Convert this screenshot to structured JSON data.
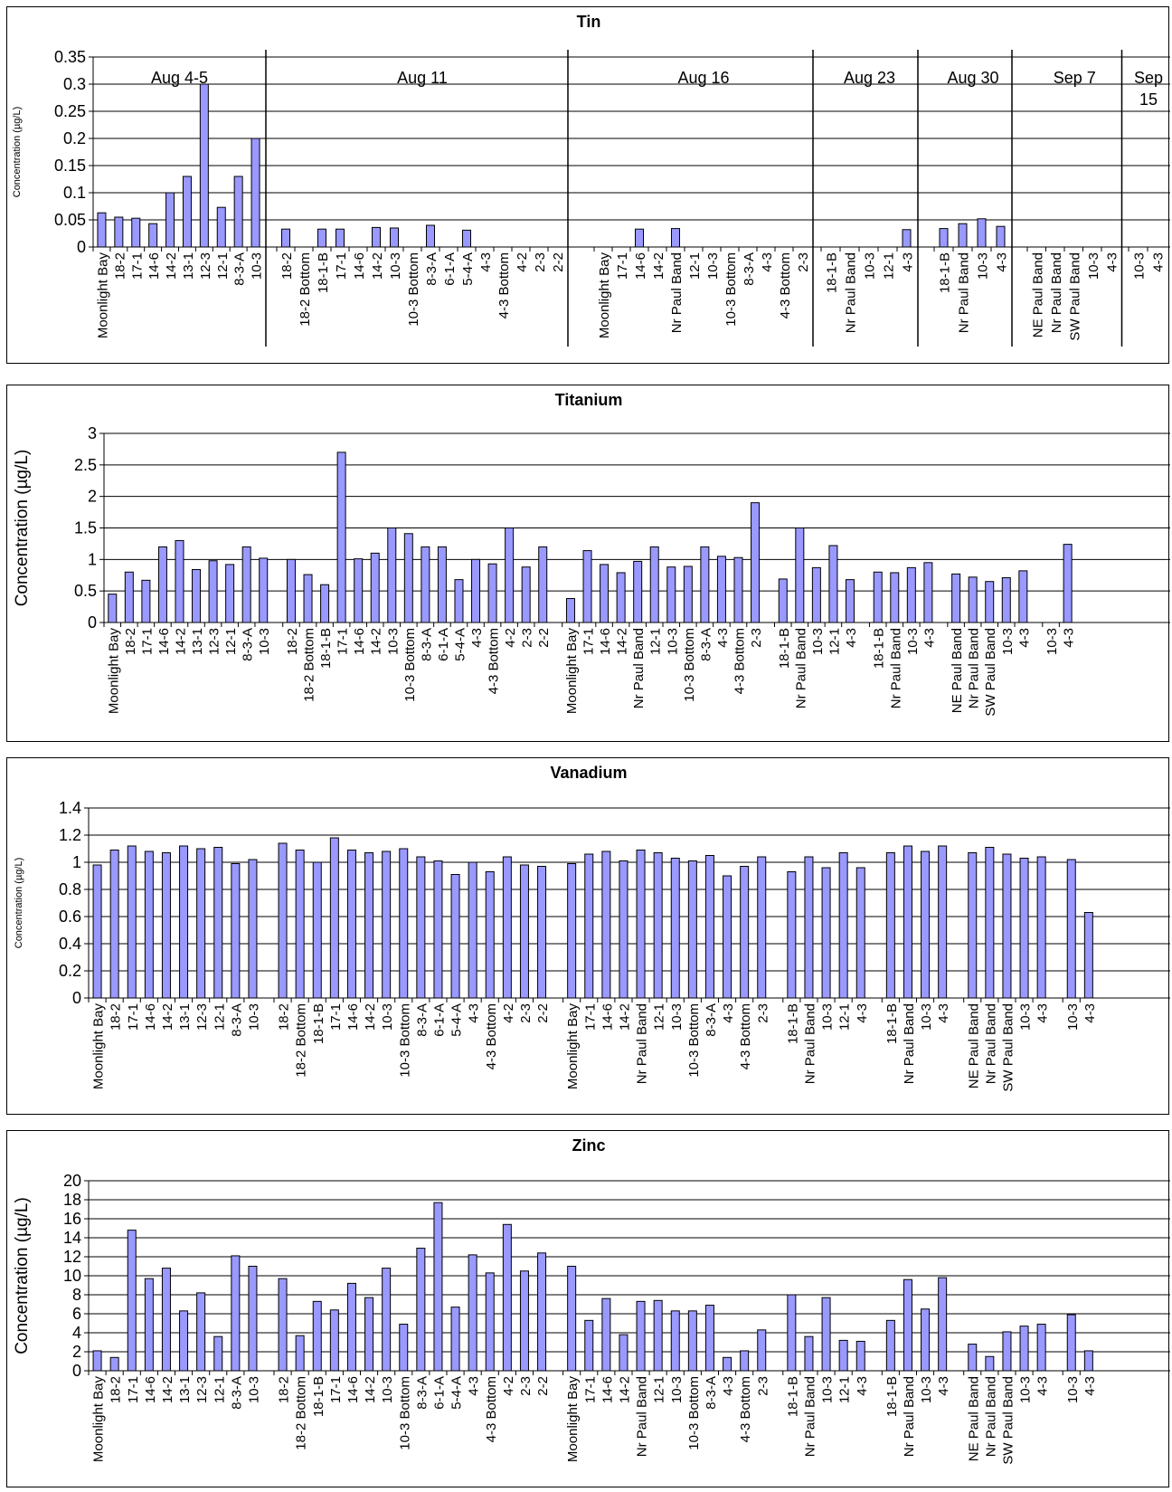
{
  "chart_data": [
    {
      "type": "bar",
      "title": "Tin",
      "ylabel": "Concentration (µg/L)",
      "ylim": [
        0,
        0.35
      ],
      "yticks": [
        "0",
        "0.05",
        "0.1",
        "0.15",
        "0.2",
        "0.25",
        "0.3",
        "0.35"
      ],
      "grid": true,
      "bar_color": "#9999ff",
      "groups": [
        {
          "label": "Aug 4-5",
          "categories": [
            "Moonlight Bay",
            "18-2",
            "17-1",
            "14-6",
            "14-2",
            "13-1",
            "12-3",
            "12-1",
            "8-3-A",
            "10-3"
          ],
          "values": [
            0.063,
            0.055,
            0.053,
            0.043,
            0.1,
            0.13,
            0.3,
            0.073,
            0.13,
            0.2
          ]
        },
        {
          "label": "Aug 11",
          "categories": [
            "18-2",
            "18-2 Bottom",
            "18-1-B",
            "17-1",
            "14-6",
            "14-2",
            "10-3",
            "10-3 Bottom",
            "8-3-A",
            "6-1-A",
            "5-4-A",
            "4-3",
            "4-3 Bottom",
            "4-2",
            "2-3",
            "2-2"
          ],
          "values": [
            0.033,
            null,
            0.033,
            0.033,
            null,
            0.036,
            0.035,
            null,
            0.04,
            null,
            0.031,
            null,
            null,
            null,
            null,
            null
          ]
        },
        {
          "label": "Aug 16",
          "categories": [
            "Moonlight Bay",
            "17-1",
            "14-6",
            "14-2",
            "Nr Paul Band",
            "12-1",
            "10-3",
            "10-3 Bottom",
            "8-3-A",
            "4-3",
            "4-3 Bottom",
            "2-3"
          ],
          "values": [
            null,
            null,
            0.033,
            null,
            0.034,
            null,
            null,
            null,
            null,
            null,
            null,
            null
          ]
        },
        {
          "label": "Aug 23",
          "categories": [
            "18-1-B",
            "Nr Paul Band",
            "10-3",
            "12-1",
            "4-3"
          ],
          "values": [
            null,
            null,
            null,
            null,
            0.032
          ]
        },
        {
          "label": "Aug 30",
          "categories": [
            "18-1-B",
            "Nr Paul Band",
            "10-3",
            "4-3"
          ],
          "values": [
            0.034,
            0.043,
            0.052,
            0.038
          ]
        },
        {
          "label": "Sep 7",
          "categories": [
            "NE Paul Band",
            "Nr Paul Band",
            "SW Paul Band",
            "10-3",
            "4-3"
          ],
          "values": [
            null,
            null,
            null,
            null,
            null
          ]
        },
        {
          "label": "Sep 15",
          "categories": [
            "10-3",
            "4-3"
          ],
          "values": [
            null,
            null
          ]
        }
      ]
    },
    {
      "type": "bar",
      "title": "Titanium",
      "ylabel": "Concentration (µg/L)",
      "ylim": [
        0,
        3
      ],
      "yticks": [
        "0",
        "0.5",
        "1",
        "1.5",
        "2",
        "2.5",
        "3"
      ],
      "grid": true,
      "bar_color": "#9999ff",
      "groups": [
        {
          "categories": [
            "Moonlight Bay",
            "18-2",
            "17-1",
            "14-6",
            "14-2",
            "13-1",
            "12-3",
            "12-1",
            "8-3-A",
            "10-3"
          ],
          "values": [
            0.45,
            0.8,
            0.67,
            1.2,
            1.3,
            0.84,
            0.98,
            0.92,
            1.2,
            1.02
          ]
        },
        {
          "categories": [
            "18-2",
            "18-2 Bottom",
            "18-1-B",
            "17-1",
            "14-6",
            "14-2",
            "10-3",
            "10-3 Bottom",
            "8-3-A",
            "6-1-A",
            "5-4-A",
            "4-3",
            "4-3 Bottom",
            "4-2",
            "2-3",
            "2-2"
          ],
          "values": [
            1.0,
            0.76,
            0.6,
            2.7,
            1.01,
            1.1,
            1.5,
            1.41,
            1.2,
            1.2,
            0.68,
            1.0,
            0.93,
            1.5,
            0.88,
            1.2
          ]
        },
        {
          "categories": [
            "Moonlight Bay",
            "17-1",
            "14-6",
            "14-2",
            "Nr Paul Band",
            "12-1",
            "10-3",
            "10-3 Bottom",
            "8-3-A",
            "4-3",
            "4-3 Bottom",
            "2-3"
          ],
          "values": [
            0.38,
            1.14,
            0.92,
            0.79,
            0.97,
            1.2,
            0.88,
            0.89,
            1.2,
            1.05,
            1.03,
            1.9
          ]
        },
        {
          "categories": [
            "18-1-B",
            "Nr Paul Band",
            "10-3",
            "12-1",
            "4-3"
          ],
          "values": [
            0.69,
            1.5,
            0.87,
            1.22,
            0.68
          ]
        },
        {
          "categories": [
            "18-1-B",
            "Nr Paul Band",
            "10-3",
            "4-3"
          ],
          "values": [
            0.8,
            0.79,
            0.87,
            0.95
          ]
        },
        {
          "categories": [
            "NE Paul Band",
            "Nr Paul Band",
            "SW Paul Band",
            "10-3",
            "4-3"
          ],
          "values": [
            0.77,
            0.72,
            0.65,
            0.71,
            0.82
          ]
        },
        {
          "categories": [
            "10-3",
            "4-3"
          ],
          "values": [
            null,
            1.24
          ]
        }
      ]
    },
    {
      "type": "bar",
      "title": "Vanadium",
      "ylabel": "Concentration (µg/L)",
      "ylim": [
        0,
        1.4
      ],
      "yticks": [
        "0",
        "0.2",
        "0.4",
        "0.6",
        "0.8",
        "1",
        "1.2",
        "1.4"
      ],
      "grid": true,
      "bar_color": "#9999ff",
      "groups": [
        {
          "categories": [
            "Moonlight Bay",
            "18-2",
            "17-1",
            "14-6",
            "14-2",
            "13-1",
            "12-3",
            "12-1",
            "8-3-A",
            "10-3"
          ],
          "values": [
            0.98,
            1.09,
            1.12,
            1.08,
            1.07,
            1.12,
            1.1,
            1.11,
            0.99,
            1.02
          ]
        },
        {
          "categories": [
            "18-2",
            "18-2 Bottom",
            "18-1-B",
            "17-1",
            "14-6",
            "14-2",
            "10-3",
            "10-3 Bottom",
            "8-3-A",
            "6-1-A",
            "5-4-A",
            "4-3",
            "4-3 Bottom",
            "4-2",
            "2-3",
            "2-2"
          ],
          "values": [
            1.14,
            1.09,
            1.0,
            1.18,
            1.09,
            1.07,
            1.08,
            1.1,
            1.04,
            1.01,
            0.91,
            1.0,
            0.93,
            1.04,
            0.98,
            0.97
          ]
        },
        {
          "categories": [
            "Moonlight Bay",
            "17-1",
            "14-6",
            "14-2",
            "Nr Paul Band",
            "12-1",
            "10-3",
            "10-3 Bottom",
            "8-3-A",
            "4-3",
            "4-3 Bottom",
            "2-3"
          ],
          "values": [
            0.99,
            1.06,
            1.08,
            1.01,
            1.09,
            1.07,
            1.03,
            1.01,
            1.05,
            0.9,
            0.97,
            1.04
          ]
        },
        {
          "categories": [
            "18-1-B",
            "Nr Paul Band",
            "10-3",
            "12-1",
            "4-3"
          ],
          "values": [
            0.93,
            1.04,
            0.96,
            1.07,
            0.96
          ]
        },
        {
          "categories": [
            "18-1-B",
            "Nr Paul Band",
            "10-3",
            "4-3"
          ],
          "values": [
            1.07,
            1.12,
            1.08,
            1.12
          ]
        },
        {
          "categories": [
            "NE Paul Band",
            "Nr Paul Band",
            "SW Paul Band",
            "10-3",
            "4-3"
          ],
          "values": [
            1.07,
            1.11,
            1.06,
            1.03,
            1.04
          ]
        },
        {
          "categories": [
            "10-3",
            "4-3"
          ],
          "values": [
            1.02,
            0.63
          ]
        }
      ]
    },
    {
      "type": "bar",
      "title": "Zinc",
      "ylabel": "Concentration (µg/L)",
      "ylim": [
        0,
        20
      ],
      "yticks": [
        "0",
        "2",
        "4",
        "6",
        "8",
        "10",
        "12",
        "14",
        "16",
        "18",
        "20"
      ],
      "grid": true,
      "bar_color": "#9999ff",
      "groups": [
        {
          "categories": [
            "Moonlight Bay",
            "18-2",
            "17-1",
            "14-6",
            "14-2",
            "13-1",
            "12-3",
            "12-1",
            "8-3-A",
            "10-3"
          ],
          "values": [
            2.1,
            1.4,
            14.8,
            9.7,
            10.8,
            6.3,
            8.2,
            3.6,
            12.1,
            11.0
          ]
        },
        {
          "categories": [
            "18-2",
            "18-2 Bottom",
            "18-1-B",
            "17-1",
            "14-6",
            "14-2",
            "10-3",
            "10-3 Bottom",
            "8-3-A",
            "6-1-A",
            "5-4-A",
            "4-3",
            "4-3 Bottom",
            "4-2",
            "2-3",
            "2-2"
          ],
          "values": [
            9.7,
            3.7,
            7.3,
            6.4,
            9.2,
            7.7,
            10.8,
            4.9,
            12.9,
            17.7,
            6.7,
            12.2,
            10.3,
            15.4,
            10.5,
            12.4
          ]
        },
        {
          "categories": [
            "Moonlight Bay",
            "17-1",
            "14-6",
            "14-2",
            "Nr Paul Band",
            "12-1",
            "10-3",
            "10-3 Bottom",
            "8-3-A",
            "4-3",
            "4-3 Bottom",
            "2-3"
          ],
          "values": [
            11.0,
            5.3,
            7.6,
            3.8,
            7.3,
            7.4,
            6.3,
            6.3,
            6.9,
            1.4,
            2.1,
            4.3
          ]
        },
        {
          "categories": [
            "18-1-B",
            "Nr Paul Band",
            "10-3",
            "12-1",
            "4-3"
          ],
          "values": [
            8.0,
            3.6,
            7.7,
            3.2,
            3.1
          ]
        },
        {
          "categories": [
            "18-1-B",
            "Nr Paul Band",
            "10-3",
            "4-3"
          ],
          "values": [
            5.3,
            9.6,
            6.5,
            9.8
          ]
        },
        {
          "categories": [
            "NE Paul Band",
            "Nr Paul Band",
            "SW Paul Band",
            "10-3",
            "4-3"
          ],
          "values": [
            2.8,
            1.5,
            4.1,
            4.7,
            4.9
          ]
        },
        {
          "categories": [
            "10-3",
            "4-3"
          ],
          "values": [
            5.9,
            2.1
          ]
        }
      ]
    }
  ]
}
